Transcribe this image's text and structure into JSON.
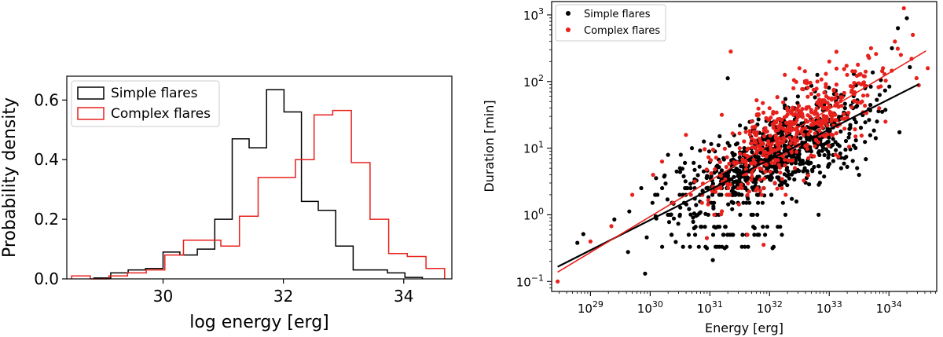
{
  "chart_data": [
    {
      "type": "histogram",
      "xlabel": "log  energy [erg]",
      "ylabel": "Probability density",
      "xlim": [
        28.4,
        34.8
      ],
      "ylim": [
        0,
        0.68
      ],
      "xticks": [
        30,
        32,
        34
      ],
      "yticks": [
        0.0,
        0.2,
        0.4,
        0.6
      ],
      "xtick_labels": [
        "30",
        "32",
        "34"
      ],
      "ytick_labels": [
        "0.0",
        "0.2",
        "0.4",
        "0.6"
      ],
      "legend_position": "upper-left",
      "series": [
        {
          "name": "Simple flares",
          "color": "#000000",
          "edges": [
            28.85,
            29.13,
            29.42,
            29.71,
            30.0,
            30.28,
            30.57,
            30.86,
            31.15,
            31.43,
            31.72,
            32.01,
            32.3,
            32.58,
            32.87,
            33.16,
            33.45,
            33.73,
            34.02,
            34.31
          ],
          "values": [
            0.003,
            0.02,
            0.03,
            0.035,
            0.09,
            0.08,
            0.1,
            0.2,
            0.47,
            0.44,
            0.635,
            0.56,
            0.26,
            0.23,
            0.11,
            0.03,
            0.03,
            0.02,
            0.005
          ]
        },
        {
          "name": "Complex flares",
          "color": "#e8211c",
          "edges": [
            28.48,
            28.79,
            29.1,
            29.41,
            29.72,
            30.03,
            30.34,
            30.65,
            30.96,
            31.27,
            31.58,
            31.89,
            32.2,
            32.51,
            32.82,
            33.13,
            33.44,
            33.75,
            34.06,
            34.37,
            34.68
          ],
          "values": [
            0.01,
            0.0,
            0.01,
            0.02,
            0.03,
            0.08,
            0.13,
            0.13,
            0.11,
            0.21,
            0.34,
            0.34,
            0.4,
            0.55,
            0.565,
            0.39,
            0.2,
            0.085,
            0.075,
            0.035
          ]
        }
      ]
    },
    {
      "type": "scatter",
      "xlabel": "Energy [erg]",
      "ylabel": "Duration [min]",
      "xscale": "log",
      "yscale": "log",
      "xlim_log10": [
        28.35,
        34.8
      ],
      "ylim_log10": [
        -1.15,
        3.2
      ],
      "xticks_log10": [
        29,
        30,
        31,
        32,
        33,
        34
      ],
      "yticks_log10": [
        -1,
        0,
        1,
        2,
        3
      ],
      "tick_base": "10",
      "xtick_exponents": [
        "29",
        "30",
        "31",
        "32",
        "33",
        "34"
      ],
      "ytick_exponents": [
        "−1",
        "0",
        "1",
        "2",
        "3"
      ],
      "legend_position": "upper-left",
      "series": [
        {
          "name": "Simple flares",
          "color": "#000000",
          "n_points": 900,
          "fit_line_log10": {
            "x": [
              28.45,
              34.5
            ],
            "y": [
              -0.78,
              1.96
            ]
          },
          "sample_points_log10": [
            [
              28.78,
              -0.42
            ],
            [
              28.88,
              -0.29
            ],
            [
              29.4,
              -0.07
            ],
            [
              29.65,
              0.05
            ],
            [
              29.85,
              0.4
            ],
            [
              30.1,
              0.55
            ],
            [
              30.3,
              0.9
            ],
            [
              30.5,
              0.7
            ],
            [
              30.7,
              1.0
            ],
            [
              30.9,
              1.1
            ],
            [
              30.95,
              -0.5
            ],
            [
              31.05,
              -0.68
            ],
            [
              31.25,
              -0.5
            ],
            [
              31.3,
              2.05
            ],
            [
              31.5,
              0.8
            ],
            [
              31.6,
              1.3
            ],
            [
              31.75,
              -0.2
            ],
            [
              32.0,
              0.9
            ],
            [
              32.05,
              -0.5
            ],
            [
              32.3,
              1.2
            ],
            [
              32.45,
              0.2
            ],
            [
              32.6,
              1.0
            ],
            [
              32.8,
              2.1
            ],
            [
              33.0,
              1.2
            ],
            [
              33.2,
              0.7
            ],
            [
              33.4,
              1.6
            ],
            [
              33.5,
              0.6
            ],
            [
              33.6,
              1.9
            ],
            [
              33.8,
              1.4
            ],
            [
              34.05,
              2.5
            ],
            [
              34.15,
              2.8
            ],
            [
              34.3,
              2.95
            ]
          ]
        },
        {
          "name": "Complex flares",
          "color": "#e8211c",
          "n_points": 500,
          "fit_line_log10": {
            "x": [
              28.45,
              34.62
            ],
            "y": [
              -0.86,
              2.46
            ]
          },
          "sample_points_log10": [
            [
              28.45,
              -1.0
            ],
            [
              29.0,
              -0.4
            ],
            [
              29.35,
              -0.17
            ],
            [
              29.7,
              0.3
            ],
            [
              30.05,
              0.6
            ],
            [
              30.2,
              0.8
            ],
            [
              30.6,
              1.2
            ],
            [
              30.75,
              0.5
            ],
            [
              30.95,
              -0.35
            ],
            [
              31.1,
              0.4
            ],
            [
              31.2,
              1.5
            ],
            [
              31.35,
              2.45
            ],
            [
              31.5,
              1.0
            ],
            [
              31.7,
              1.4
            ],
            [
              31.9,
              -0.45
            ],
            [
              32.0,
              1.6
            ],
            [
              32.2,
              1.1
            ],
            [
              32.4,
              1.9
            ],
            [
              32.5,
              2.2
            ],
            [
              32.6,
              1.3
            ],
            [
              32.8,
              2.0
            ],
            [
              33.0,
              2.3
            ],
            [
              33.1,
              1.5
            ],
            [
              33.3,
              2.1
            ],
            [
              33.55,
              1.7
            ],
            [
              33.7,
              2.5
            ],
            [
              33.9,
              2.2
            ],
            [
              34.1,
              2.6
            ],
            [
              34.2,
              2.4
            ],
            [
              34.25,
              3.1
            ],
            [
              34.4,
              2.7
            ],
            [
              34.65,
              2.2
            ]
          ]
        }
      ]
    }
  ]
}
